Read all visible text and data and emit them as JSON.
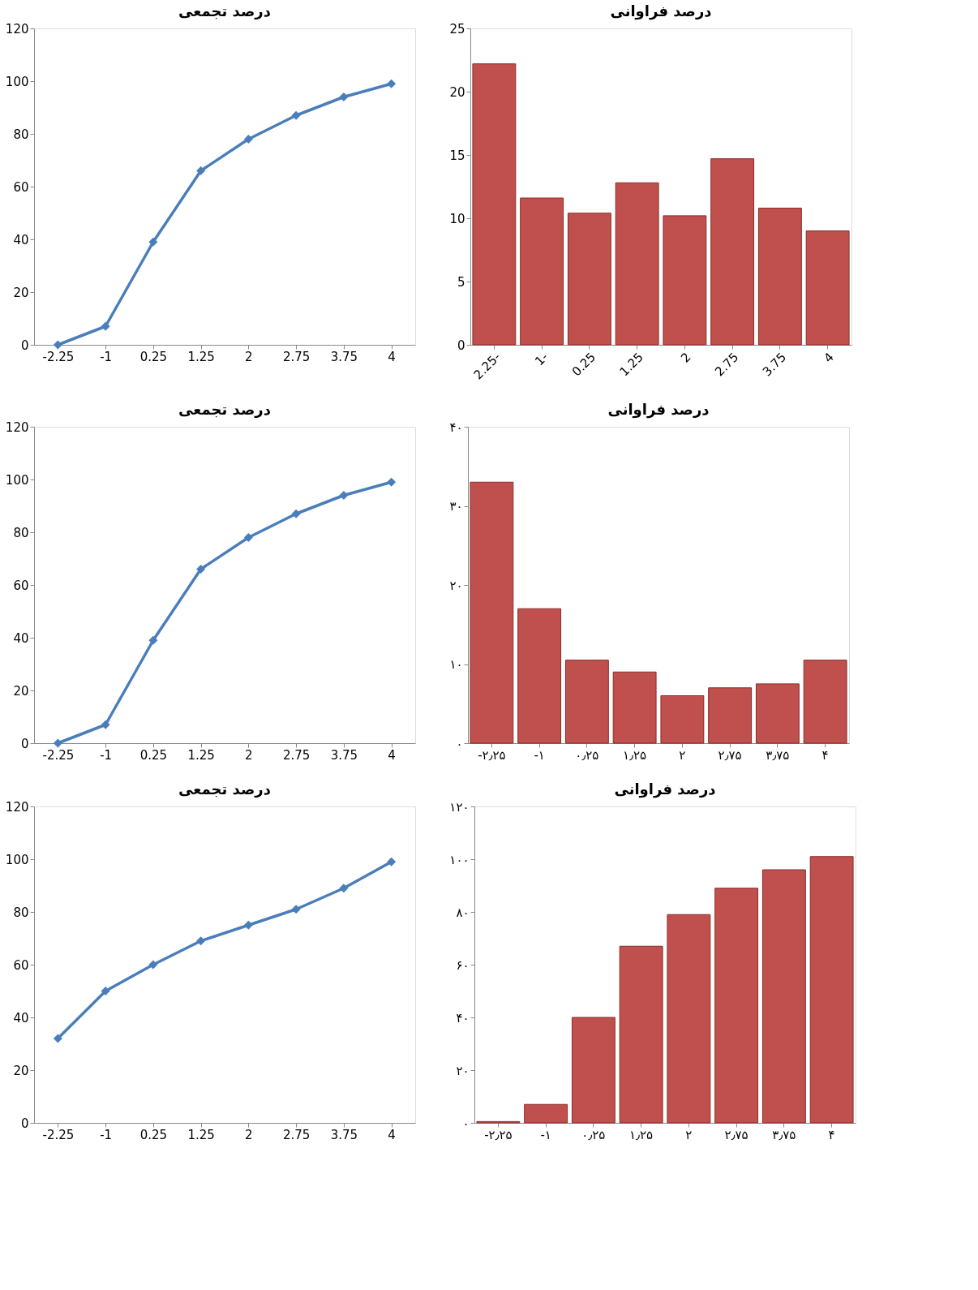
{
  "chart_data": [
    {
      "type": "line",
      "title": "درصد تجمعی",
      "categories": [
        "-2.25",
        "-1",
        "0.25",
        "1.25",
        "2",
        "2.75",
        "3.75",
        "4"
      ],
      "values": [
        0,
        7,
        39,
        66,
        78,
        87,
        94,
        99
      ],
      "color": "#4a7ebb",
      "marker": "diamond",
      "ylim": [
        0,
        120
      ],
      "yticks": [
        0,
        20,
        40,
        60,
        80,
        100,
        120
      ]
    },
    {
      "type": "bar",
      "title": "درصد فراوانی",
      "categories": [
        "2.25-",
        "1-",
        "0.25",
        "1.25",
        "2",
        "2.75",
        "3.75",
        "4"
      ],
      "values": [
        22.2,
        11.6,
        10.4,
        12.8,
        10.2,
        14.7,
        10.8,
        9
      ],
      "color": "#c0504d",
      "ylim": [
        0,
        25
      ],
      "yticks": [
        0,
        5,
        10,
        15,
        20,
        25
      ]
    },
    {
      "type": "line",
      "title": "درصد تجمعی",
      "categories": [
        "-2.25",
        "-1",
        "0.25",
        "1.25",
        "2",
        "2.75",
        "3.75",
        "4"
      ],
      "values": [
        0,
        7,
        39,
        66,
        78,
        87,
        94,
        99
      ],
      "color": "#4a7ebb",
      "marker": "diamond",
      "ylim": [
        0,
        120
      ],
      "yticks": [
        0,
        20,
        40,
        60,
        80,
        100,
        120
      ]
    },
    {
      "type": "bar",
      "title": "درصد فراوانی",
      "categories": [
        "-۲٫۲۵",
        "-۱",
        "۰٫۲۵",
        "۱٫۲۵",
        "۲",
        "۲٫۷۵",
        "۳٫۷۵",
        "۴"
      ],
      "values": [
        33,
        17,
        10.5,
        9,
        6,
        7,
        7.5,
        10.5
      ],
      "color": "#c0504d",
      "ylim": [
        0,
        40
      ],
      "yticks": [
        {
          "value": 0,
          "label": "۰"
        },
        {
          "value": 10,
          "label": "۱۰"
        },
        {
          "value": 20,
          "label": "۲۰"
        },
        {
          "value": 30,
          "label": "۳۰"
        },
        {
          "value": 40,
          "label": "۴۰"
        }
      ]
    },
    {
      "type": "line",
      "title": "درصد تجمعی",
      "categories": [
        "-2.25",
        "-1",
        "0.25",
        "1.25",
        "2",
        "2.75",
        "3.75",
        "4"
      ],
      "values": [
        32,
        50,
        60,
        69,
        75,
        81,
        89,
        99
      ],
      "color": "#4a7ebb",
      "marker": "diamond",
      "ylim": [
        0,
        120
      ],
      "yticks": [
        0,
        20,
        40,
        60,
        80,
        100,
        120
      ]
    },
    {
      "type": "bar",
      "title": "درصد فراوانی",
      "categories": [
        "-۲٫۲۵",
        "-۱",
        "۰٫۲۵",
        "۱٫۲۵",
        "۲",
        "۲٫۷۵",
        "۳٫۷۵",
        "۴"
      ],
      "values": [
        0.5,
        7,
        40,
        67,
        79,
        89,
        96,
        101
      ],
      "color": "#c0504d",
      "ylim": [
        0,
        120
      ],
      "yticks": [
        {
          "value": 0,
          "label": "۰"
        },
        {
          "value": 20,
          "label": "۲۰"
        },
        {
          "value": 40,
          "label": "۴۰"
        },
        {
          "value": 60,
          "label": "۶۰"
        },
        {
          "value": 80,
          "label": "۸۰"
        },
        {
          "value": 100,
          "label": "۱۰۰"
        },
        {
          "value": 120,
          "label": "۱۲۰"
        }
      ]
    }
  ]
}
